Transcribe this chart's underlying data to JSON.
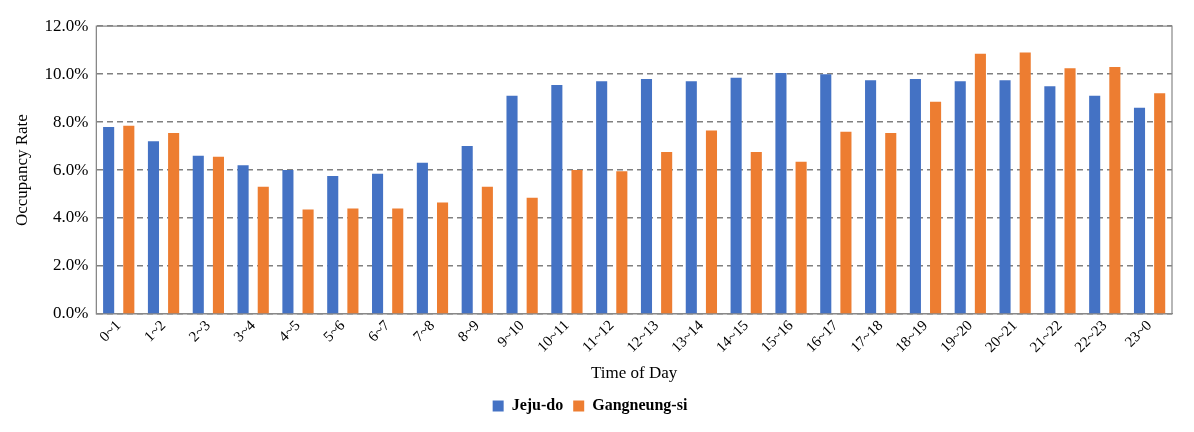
{
  "chart_data": {
    "type": "bar",
    "xlabel": "Time of Day",
    "ylabel": "Occupancy Rate",
    "categories": [
      "0~1",
      "1~2",
      "2~3",
      "3~4",
      "4~5",
      "5~6",
      "6~7",
      "7~8",
      "8~9",
      "9~10",
      "10~11",
      "11~12",
      "12~13",
      "13~14",
      "14~15",
      "15~16",
      "16~17",
      "17~18",
      "18~19",
      "19~20",
      "20~21",
      "21~22",
      "22~23",
      "23~0"
    ],
    "series": [
      {
        "name": "Jeju-do",
        "color": "#4472c4",
        "values": [
          7.8,
          7.2,
          6.6,
          6.2,
          6.0,
          5.75,
          5.85,
          6.3,
          7.0,
          9.1,
          9.55,
          9.7,
          9.8,
          9.7,
          9.85,
          10.05,
          10.0,
          9.75,
          9.8,
          9.7,
          9.75,
          9.5,
          9.1,
          8.6
        ]
      },
      {
        "name": "Gangneung-si",
        "color": "#ed7d31",
        "values": [
          7.85,
          7.55,
          6.55,
          5.3,
          4.35,
          4.4,
          4.4,
          4.65,
          5.3,
          4.85,
          6.0,
          5.95,
          6.75,
          7.65,
          6.75,
          6.35,
          7.6,
          7.55,
          8.85,
          10.85,
          10.9,
          10.25,
          10.3,
          9.2
        ]
      }
    ],
    "ylim": [
      0,
      12
    ],
    "yticks": [
      {
        "value": 0,
        "label": "0.0%"
      },
      {
        "value": 2,
        "label": "2.0%"
      },
      {
        "value": 4,
        "label": "4.0%"
      },
      {
        "value": 6,
        "label": "6.0%"
      },
      {
        "value": 8,
        "label": "8.0%"
      },
      {
        "value": 10,
        "label": "10.0%"
      },
      {
        "value": 12,
        "label": "12.0%"
      }
    ],
    "grid": "y",
    "legend": "bottom"
  }
}
